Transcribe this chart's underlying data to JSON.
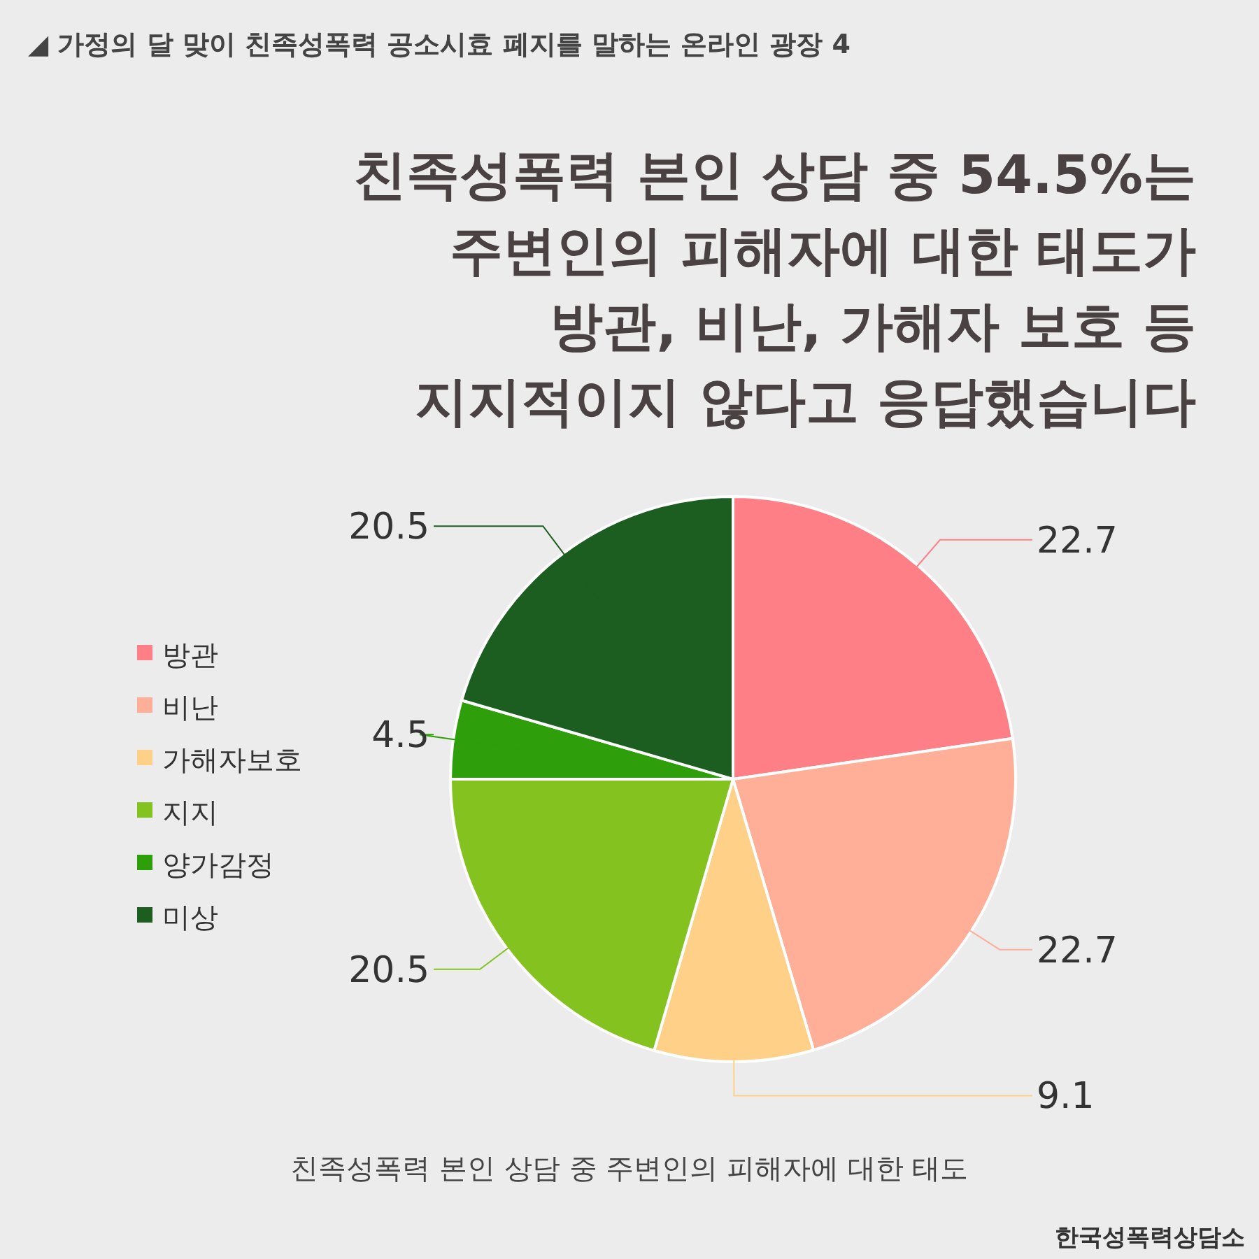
{
  "chart_data": {
    "type": "pie",
    "subtitle": "◢ 가정의 달 맞이 친족성폭력 공소시효 폐지를 말하는 온라인 광장 4",
    "title": "친족성폭력 본인 상담 중 54.5%는\n주변인의 피해자에 대한 태도가\n방관, 비난, 가해자 보호 등\n지지적이지 않다고 응답했습니다",
    "categories": [
      "방관",
      "비난",
      "가해자보호",
      "지지",
      "양가감정",
      "미상"
    ],
    "values": [
      22.7,
      22.7,
      9.1,
      20.5,
      4.5,
      20.5
    ],
    "colors": [
      "#ff7f87",
      "#ffae98",
      "#ffd088",
      "#84c220",
      "#2e9e0a",
      "#1b5e20"
    ],
    "data_labels": true,
    "legend": "left",
    "annotations": [
      "친족성폭력 본인 상담 중 주변인의 피해자에 대한 태도",
      "한국성폭력상담소"
    ]
  }
}
